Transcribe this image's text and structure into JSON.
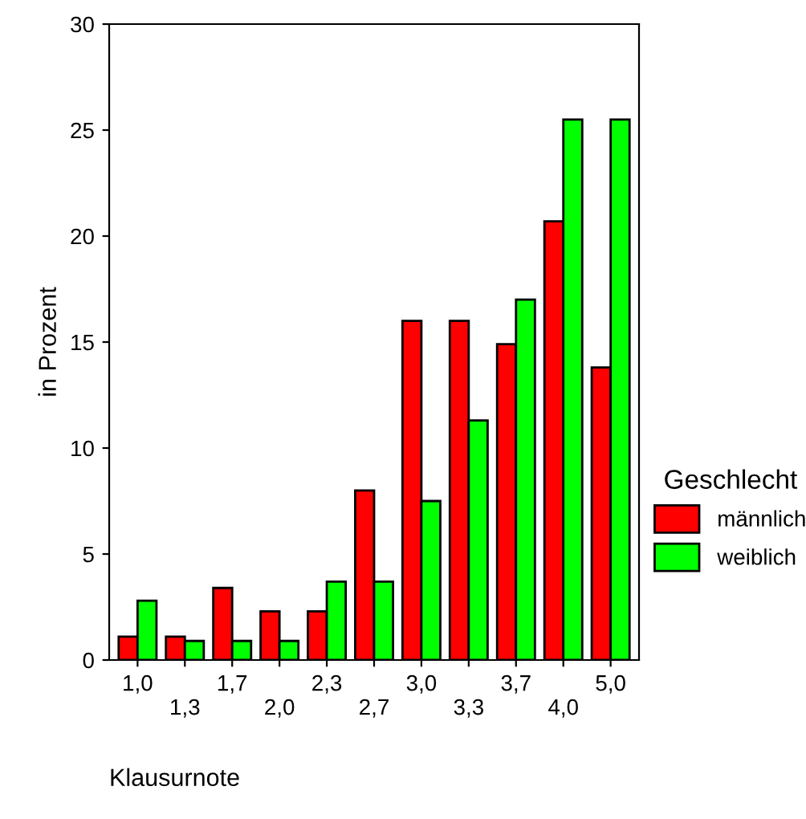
{
  "chart_data": {
    "type": "bar",
    "xlabel": "Klausurnote",
    "ylabel": "in Prozent",
    "legend_title": "Geschlecht",
    "categories": [
      "1,0",
      "1,3",
      "1,7",
      "2,0",
      "2,3",
      "2,7",
      "3,0",
      "3,3",
      "3,7",
      "4,0",
      "5,0"
    ],
    "series": [
      {
        "name": "männlich",
        "color": "#ff0000",
        "values": [
          1.1,
          1.1,
          3.4,
          2.3,
          2.3,
          8.0,
          16.0,
          16.0,
          14.9,
          20.7,
          13.8
        ]
      },
      {
        "name": "weiblich",
        "color": "#00ff00",
        "values": [
          2.8,
          0.9,
          0.9,
          0.9,
          3.7,
          3.7,
          7.5,
          11.3,
          17.0,
          25.5,
          25.5
        ]
      }
    ],
    "ylim": [
      0,
      30
    ],
    "yticks": [
      0,
      5,
      10,
      15,
      20,
      25,
      30
    ],
    "grid": false,
    "legend": "right"
  }
}
